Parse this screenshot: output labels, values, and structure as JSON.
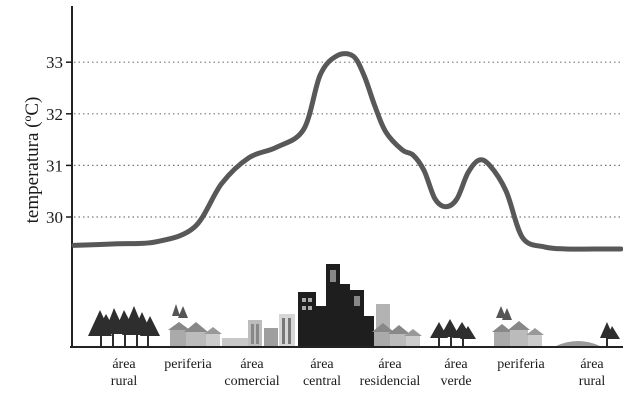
{
  "chart_data": {
    "type": "line",
    "title": "",
    "xlabel": "",
    "ylabel": "temperatura (ºC)",
    "yticks": [
      30,
      31,
      32,
      33
    ],
    "grid": true,
    "series": [
      {
        "x": [
          0,
          0.08,
          0.15,
          0.22,
          0.27,
          0.32,
          0.37,
          0.42,
          0.45,
          0.48,
          0.51,
          0.53,
          0.55,
          0.57,
          0.6,
          0.62,
          0.64,
          0.66,
          0.68,
          0.7,
          0.72,
          0.74,
          0.76,
          0.79,
          0.82,
          0.86,
          0.9,
          0.95,
          1
        ],
        "y": [
          29.45,
          29.48,
          29.52,
          29.8,
          30.65,
          31.15,
          31.35,
          31.7,
          32.75,
          33.12,
          33.12,
          32.75,
          32.15,
          31.65,
          31.3,
          31.2,
          30.9,
          30.35,
          30.2,
          30.35,
          30.85,
          31.1,
          31.0,
          30.5,
          29.6,
          29.42,
          29.38,
          29.38,
          29.38
        ]
      }
    ],
    "zones": [
      {
        "lines": [
          "área",
          "rural"
        ]
      },
      {
        "lines": [
          "periferia"
        ]
      },
      {
        "lines": [
          "área",
          "comercial"
        ]
      },
      {
        "lines": [
          "área",
          "central"
        ]
      },
      {
        "lines": [
          "área",
          "residencial"
        ]
      },
      {
        "lines": [
          "área",
          "verde"
        ]
      },
      {
        "lines": [
          "periferia"
        ]
      },
      {
        "lines": [
          "área",
          "rural"
        ]
      }
    ],
    "colors": {
      "curve": "#585858",
      "grid": "#777777",
      "axis": "#1a1a1a"
    }
  }
}
